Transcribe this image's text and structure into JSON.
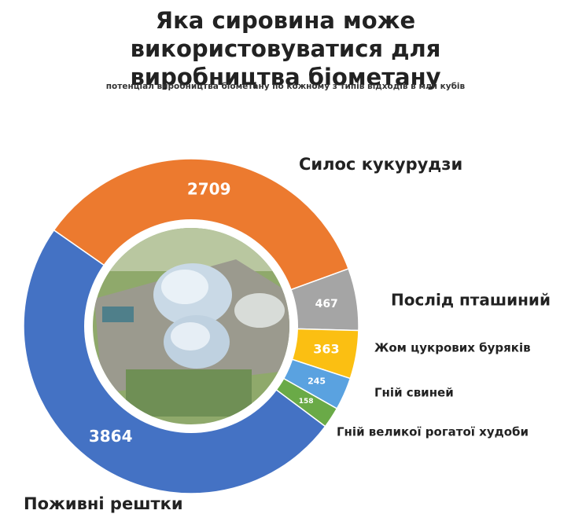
{
  "chart_data": {
    "type": "donut",
    "title": "Яка сировина може використовуватися для виробництва біометану",
    "subtitle": "потенціал виробництва біометану по кожному з типів відходів в млн кубів",
    "categories": [
      "Силос кукурудзи",
      "Послід пташиний",
      "Жом цукрових буряків",
      "Гній свиней",
      "Гній великої рогатої худоби",
      "Поживні рештки"
    ],
    "values": [
      2709,
      467,
      363,
      245,
      158,
      3864
    ],
    "colors": [
      "#ec7a2f",
      "#a5a5a5",
      "#fbbf12",
      "#5aa2e0",
      "#6aaa47",
      "#4472c4"
    ]
  }
}
